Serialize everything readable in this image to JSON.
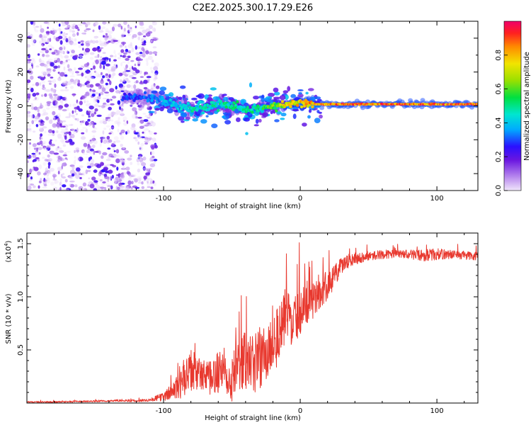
{
  "title": "C2E2.2025.300.17.29.E26",
  "chart_data": [
    {
      "type": "heatmap",
      "xlabel": "Height of straight line (km)",
      "ylabel": "Frequency (Hz)",
      "xlim": [
        -200,
        130
      ],
      "ylim": [
        -50,
        50
      ],
      "xticks": [
        -100,
        0,
        100
      ],
      "xtick_labels": [
        "-100",
        "0",
        "100"
      ],
      "yticks": [
        -40,
        -20,
        0,
        20,
        40
      ],
      "ytick_labels": [
        "-40",
        "-20",
        "0",
        "20",
        "40"
      ],
      "noise_region_x": [
        -200,
        -105
      ],
      "signal_track": {
        "x": [
          -130,
          -110,
          -100,
          -90,
          -80,
          -70,
          -60,
          -50,
          -40,
          -30,
          -20,
          -10,
          0,
          10,
          20,
          40,
          60,
          80,
          100,
          130
        ],
        "freq_hz": [
          5,
          5,
          3,
          0,
          -2,
          -1,
          1,
          0,
          -3,
          -1,
          0,
          1,
          2,
          1,
          1,
          1,
          1,
          1,
          1,
          1
        ],
        "strength": [
          0.3,
          0.35,
          0.4,
          0.45,
          0.5,
          0.5,
          0.5,
          0.55,
          0.5,
          0.55,
          0.65,
          0.8,
          0.85,
          0.9,
          0.95,
          0.95,
          0.95,
          0.95,
          0.95,
          0.95
        ]
      },
      "colorbar": {
        "label": "Normalized spectral amplitude",
        "range": [
          0,
          1
        ],
        "ticks": [
          0.0,
          0.2,
          0.4,
          0.6,
          0.8
        ],
        "tick_labels": [
          "0.0",
          "0.2",
          "0.4",
          "0.6",
          "0.8"
        ]
      }
    },
    {
      "type": "line",
      "xlabel": "Height of straight line (km)",
      "ylabel": "SNR (10 * v/v)",
      "y_multiplier_label": "(x10",
      "y_multiplier_exp": "4",
      "y_multiplier_close": ")",
      "xlim": [
        -200,
        130
      ],
      "ylim": [
        0,
        1.6
      ],
      "xticks": [
        -100,
        0,
        100
      ],
      "xtick_labels": [
        "-100",
        "0",
        "100"
      ],
      "yticks": [
        0.5,
        1.0,
        1.5
      ],
      "ytick_labels": [
        "0.5",
        "1.0",
        "1.5"
      ],
      "series": [
        {
          "name": "SNR",
          "color": "#e8392f",
          "x": [
            -200,
            -180,
            -160,
            -140,
            -130,
            -120,
            -110,
            -100,
            -95,
            -90,
            -85,
            -80,
            -75,
            -70,
            -65,
            -60,
            -55,
            -50,
            -45,
            -40,
            -35,
            -30,
            -25,
            -20,
            -15,
            -10,
            -5,
            0,
            5,
            10,
            15,
            20,
            25,
            30,
            35,
            40,
            50,
            60,
            70,
            80,
            90,
            100,
            110,
            120,
            130
          ],
          "y": [
            0.01,
            0.01,
            0.015,
            0.02,
            0.025,
            0.02,
            0.03,
            0.06,
            0.1,
            0.15,
            0.2,
            0.3,
            0.28,
            0.25,
            0.22,
            0.3,
            0.32,
            0.25,
            0.35,
            0.4,
            0.35,
            0.42,
            0.45,
            0.6,
            0.65,
            0.85,
            0.75,
            0.9,
            0.95,
            1.0,
            1.05,
            1.1,
            1.2,
            1.28,
            1.33,
            1.36,
            1.38,
            1.4,
            1.4,
            1.4,
            1.39,
            1.4,
            1.4,
            1.39,
            1.38
          ],
          "noise": [
            0.005,
            0.005,
            0.005,
            0.006,
            0.008,
            0.008,
            0.01,
            0.03,
            0.05,
            0.08,
            0.12,
            0.15,
            0.12,
            0.1,
            0.12,
            0.15,
            0.15,
            0.18,
            0.18,
            0.2,
            0.2,
            0.22,
            0.2,
            0.25,
            0.2,
            0.2,
            0.15,
            0.18,
            0.15,
            0.14,
            0.12,
            0.1,
            0.08,
            0.06,
            0.05,
            0.04,
            0.03,
            0.03,
            0.03,
            0.03,
            0.04,
            0.04,
            0.03,
            0.03,
            0.03
          ]
        }
      ]
    }
  ]
}
